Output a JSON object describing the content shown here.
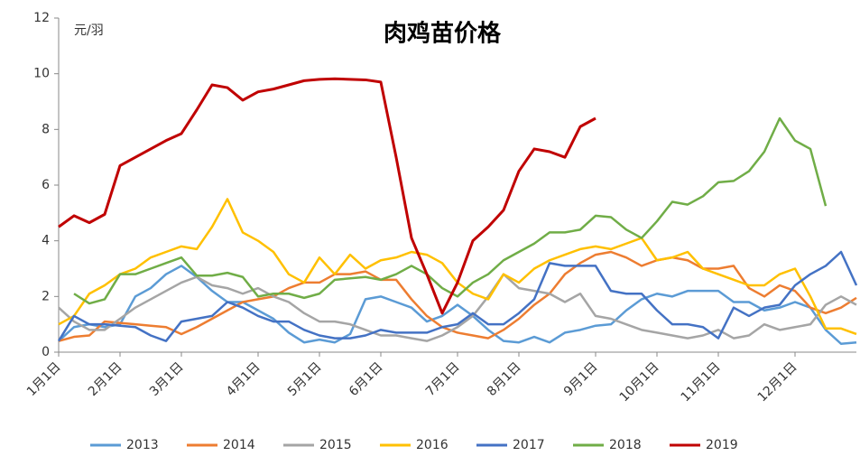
{
  "chart_data": {
    "type": "line",
    "title": "肉鸡苗价格",
    "y_label": "元/羽",
    "categories": [
      "1月1日",
      null,
      null,
      null,
      "2月1日",
      null,
      null,
      null,
      "3月1日",
      null,
      null,
      null,
      null,
      "4月1日",
      null,
      null,
      null,
      "5月1日",
      null,
      null,
      null,
      "6月1日",
      null,
      null,
      null,
      null,
      "7月1日",
      null,
      null,
      null,
      "8月1日",
      null,
      null,
      null,
      null,
      "9月1日",
      null,
      null,
      null,
      "10月1日",
      null,
      null,
      null,
      "11月1日",
      null,
      null,
      null,
      null,
      "12月1日",
      null,
      null,
      null,
      null
    ],
    "ylim": [
      0,
      12
    ],
    "yticks": [
      0,
      2,
      4,
      6,
      8,
      10,
      12
    ],
    "grid": false,
    "legend": "bottom",
    "series": [
      {
        "name": "2013",
        "color": "#5b9bd5",
        "values": [
          0.4,
          0.9,
          1.0,
          0.9,
          1.0,
          2.0,
          2.3,
          2.8,
          3.1,
          2.7,
          2.2,
          1.8,
          1.8,
          1.5,
          1.2,
          0.7,
          0.35,
          0.45,
          0.35,
          0.65,
          1.9,
          2.0,
          1.8,
          1.6,
          1.1,
          1.3,
          1.7,
          1.3,
          0.8,
          0.4,
          0.35,
          0.55,
          0.35,
          0.7,
          0.8,
          0.95,
          1.0,
          1.5,
          1.9,
          2.1,
          2.0,
          2.2,
          2.2,
          2.2,
          1.8,
          1.8,
          1.5,
          1.6,
          1.8,
          1.6,
          0.8,
          0.3,
          0.35
        ]
      },
      {
        "name": "2014",
        "color": "#ed7d31",
        "values": [
          0.4,
          0.55,
          0.6,
          1.1,
          1.05,
          1.0,
          0.95,
          0.9,
          0.65,
          0.9,
          1.2,
          1.5,
          1.8,
          1.9,
          2.0,
          2.3,
          2.5,
          2.5,
          2.8,
          2.8,
          2.9,
          2.6,
          2.6,
          1.9,
          1.3,
          0.9,
          0.7,
          0.6,
          0.5,
          0.8,
          1.2,
          1.7,
          2.1,
          2.8,
          3.2,
          3.5,
          3.6,
          3.4,
          3.1,
          3.3,
          3.4,
          3.3,
          3.0,
          3.0,
          3.1,
          2.3,
          2.0,
          2.4,
          2.2,
          1.6,
          1.4,
          1.6,
          1.95
        ]
      },
      {
        "name": "2015",
        "color": "#a5a5a5",
        "values": [
          1.6,
          1.1,
          0.8,
          0.8,
          1.2,
          1.6,
          1.9,
          2.2,
          2.5,
          2.7,
          2.4,
          2.3,
          2.1,
          2.3,
          2.0,
          1.8,
          1.4,
          1.1,
          1.1,
          1.0,
          0.8,
          0.6,
          0.6,
          0.5,
          0.4,
          0.6,
          0.9,
          1.3,
          2.0,
          2.8,
          2.3,
          2.2,
          2.1,
          1.8,
          2.1,
          1.3,
          1.2,
          1.0,
          0.8,
          0.7,
          0.6,
          0.5,
          0.6,
          0.8,
          0.5,
          0.6,
          1.0,
          0.8,
          0.9,
          1.0,
          1.7,
          2.0,
          1.7
        ]
      },
      {
        "name": "2016",
        "color": "#ffc000",
        "values": [
          1.0,
          1.3,
          2.1,
          2.4,
          2.8,
          3.0,
          3.4,
          3.6,
          3.8,
          3.7,
          4.5,
          5.5,
          4.3,
          4.0,
          3.6,
          2.8,
          2.5,
          3.4,
          2.8,
          3.5,
          3.0,
          3.3,
          3.4,
          3.6,
          3.5,
          3.2,
          2.5,
          2.1,
          1.9,
          2.8,
          2.5,
          3.0,
          3.3,
          3.5,
          3.7,
          3.8,
          3.7,
          3.9,
          4.1,
          3.3,
          3.4,
          3.6,
          3.0,
          2.8,
          2.6,
          2.4,
          2.4,
          2.8,
          3.0,
          2.0,
          0.85,
          0.85,
          0.65
        ]
      },
      {
        "name": "2017",
        "color": "#4472c4",
        "values": [
          0.4,
          1.3,
          1.0,
          1.0,
          0.95,
          0.9,
          0.6,
          0.4,
          1.1,
          1.2,
          1.3,
          1.8,
          1.6,
          1.3,
          1.1,
          1.1,
          0.8,
          0.6,
          0.5,
          0.5,
          0.6,
          0.8,
          0.7,
          0.7,
          0.7,
          0.9,
          1.0,
          1.4,
          1.0,
          1.0,
          1.4,
          1.9,
          3.2,
          3.1,
          3.1,
          3.1,
          2.2,
          2.1,
          2.1,
          1.5,
          1.0,
          1.0,
          0.9,
          0.5,
          1.6,
          1.3,
          1.6,
          1.7,
          2.4,
          2.8,
          3.1,
          3.6,
          2.4
        ]
      },
      {
        "name": "2018",
        "color": "#70ad47",
        "values": [
          null,
          2.1,
          1.75,
          1.9,
          2.8,
          2.8,
          3.0,
          3.2,
          3.4,
          2.75,
          2.75,
          2.85,
          2.7,
          2.0,
          2.1,
          2.1,
          1.95,
          2.1,
          2.6,
          2.65,
          2.7,
          2.6,
          2.8,
          3.1,
          2.8,
          2.3,
          2.0,
          2.5,
          2.8,
          3.3,
          3.6,
          3.9,
          4.3,
          4.3,
          4.4,
          4.9,
          4.85,
          4.4,
          4.1,
          4.7,
          5.4,
          5.3,
          5.6,
          6.1,
          6.15,
          6.5,
          7.2,
          8.4,
          7.6,
          7.3,
          5.25,
          null,
          null
        ]
      },
      {
        "name": "2019",
        "color": "#c00000",
        "values": [
          4.5,
          4.9,
          4.65,
          4.95,
          6.7,
          7.0,
          7.3,
          7.6,
          7.85,
          8.7,
          9.6,
          9.5,
          9.05,
          9.35,
          9.45,
          9.6,
          9.75,
          9.8,
          9.82,
          9.8,
          9.78,
          9.7,
          7.0,
          4.1,
          2.8,
          1.4,
          2.5,
          4.0,
          4.5,
          5.1,
          6.5,
          7.3,
          7.2,
          7.0,
          8.1,
          8.4,
          null,
          null,
          null,
          null,
          null,
          null,
          null,
          null,
          null,
          null,
          null,
          null,
          null,
          null,
          null,
          null,
          null
        ]
      }
    ]
  }
}
